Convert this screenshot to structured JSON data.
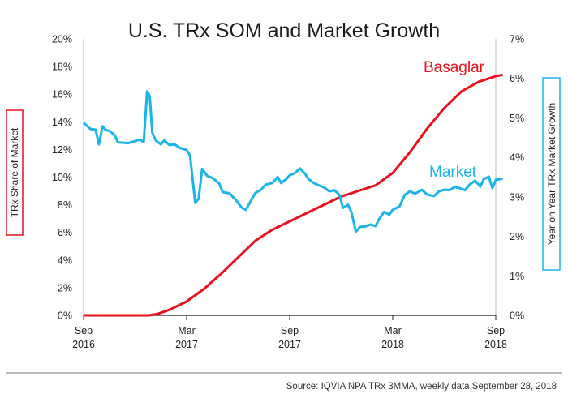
{
  "chart_data": {
    "type": "line",
    "title": "U.S. TRx SOM and Market Growth",
    "ylabel_left": "TRx Share of Market",
    "ylabel_right": "Year on Year TRx Market Growth",
    "source": "Source: IQVIA NPA TRx 3MMA, weekly data September 28, 2018",
    "x_range": [
      0,
      24
    ],
    "x_ticks": [
      {
        "x": 0,
        "line1": "Sep",
        "line2": "2016"
      },
      {
        "x": 6,
        "line1": "Mar",
        "line2": "2017"
      },
      {
        "x": 12,
        "line1": "Sep",
        "line2": "2017"
      },
      {
        "x": 18,
        "line1": "Mar",
        "line2": "2018"
      },
      {
        "x": 24,
        "line1": "Sep",
        "line2": "2018"
      }
    ],
    "y_left": {
      "lim": [
        0,
        20
      ],
      "ticks": [
        "0%",
        "2%",
        "4%",
        "6%",
        "8%",
        "10%",
        "12%",
        "14%",
        "16%",
        "18%",
        "20%"
      ]
    },
    "y_right": {
      "lim": [
        0,
        7
      ],
      "ticks": [
        "0%",
        "1%",
        "2%",
        "3%",
        "4%",
        "5%",
        "6%",
        "7%"
      ]
    },
    "series": [
      {
        "name": "Basaglar",
        "axis": "left",
        "color": "#e8101c",
        "points": [
          [
            0,
            0
          ],
          [
            1,
            0
          ],
          [
            2,
            0
          ],
          [
            3,
            0
          ],
          [
            3.8,
            0
          ],
          [
            4.3,
            0.1
          ],
          [
            5,
            0.4
          ],
          [
            6,
            1.0
          ],
          [
            7,
            1.9
          ],
          [
            8,
            3.0
          ],
          [
            9,
            4.2
          ],
          [
            10,
            5.4
          ],
          [
            11,
            6.2
          ],
          [
            12,
            6.8
          ],
          [
            13,
            7.4
          ],
          [
            14,
            8.0
          ],
          [
            15,
            8.6
          ],
          [
            16,
            9.0
          ],
          [
            17,
            9.4
          ],
          [
            18,
            10.3
          ],
          [
            19,
            11.8
          ],
          [
            20,
            13.5
          ],
          [
            21,
            15.0
          ],
          [
            22,
            16.2
          ],
          [
            23,
            16.9
          ],
          [
            24,
            17.3
          ],
          [
            24.4,
            17.4
          ]
        ]
      },
      {
        "name": "Market",
        "axis": "right",
        "color": "#1ab4e8",
        "points": [
          [
            0,
            4.88
          ],
          [
            0.4,
            4.72
          ],
          [
            0.7,
            4.7
          ],
          [
            0.9,
            4.33
          ],
          [
            1.1,
            4.79
          ],
          [
            1.3,
            4.69
          ],
          [
            1.5,
            4.67
          ],
          [
            1.8,
            4.57
          ],
          [
            2.0,
            4.38
          ],
          [
            2.6,
            4.36
          ],
          [
            2.9,
            4.4
          ],
          [
            3.3,
            4.45
          ],
          [
            3.5,
            4.38
          ],
          [
            3.7,
            5.67
          ],
          [
            3.85,
            5.55
          ],
          [
            4.0,
            4.62
          ],
          [
            4.2,
            4.43
          ],
          [
            4.5,
            4.33
          ],
          [
            4.7,
            4.43
          ],
          [
            5.0,
            4.31
          ],
          [
            5.3,
            4.33
          ],
          [
            5.6,
            4.24
          ],
          [
            6.0,
            4.19
          ],
          [
            6.2,
            4.05
          ],
          [
            6.5,
            2.85
          ],
          [
            6.7,
            2.95
          ],
          [
            6.9,
            3.71
          ],
          [
            7.2,
            3.53
          ],
          [
            7.5,
            3.48
          ],
          [
            7.9,
            3.34
          ],
          [
            8.1,
            3.12
          ],
          [
            8.5,
            3.09
          ],
          [
            8.9,
            2.9
          ],
          [
            9.2,
            2.73
          ],
          [
            9.45,
            2.67
          ],
          [
            9.7,
            2.87
          ],
          [
            10.0,
            3.1
          ],
          [
            10.3,
            3.17
          ],
          [
            10.6,
            3.31
          ],
          [
            11.0,
            3.35
          ],
          [
            11.3,
            3.5
          ],
          [
            11.5,
            3.35
          ],
          [
            11.8,
            3.45
          ],
          [
            12.0,
            3.55
          ],
          [
            12.3,
            3.6
          ],
          [
            12.6,
            3.72
          ],
          [
            12.9,
            3.58
          ],
          [
            13.1,
            3.45
          ],
          [
            13.4,
            3.35
          ],
          [
            13.7,
            3.29
          ],
          [
            14.0,
            3.24
          ],
          [
            14.3,
            3.14
          ],
          [
            14.6,
            3.17
          ],
          [
            14.9,
            3.05
          ],
          [
            15.1,
            2.72
          ],
          [
            15.4,
            2.8
          ],
          [
            15.6,
            2.6
          ],
          [
            15.85,
            2.12
          ],
          [
            16.1,
            2.24
          ],
          [
            16.4,
            2.25
          ],
          [
            16.7,
            2.3
          ],
          [
            17.0,
            2.26
          ],
          [
            17.2,
            2.43
          ],
          [
            17.5,
            2.62
          ],
          [
            17.8,
            2.55
          ],
          [
            18.0,
            2.67
          ],
          [
            18.4,
            2.76
          ],
          [
            18.7,
            3.05
          ],
          [
            19.0,
            3.14
          ],
          [
            19.3,
            3.08
          ],
          [
            19.7,
            3.18
          ],
          [
            20.0,
            3.06
          ],
          [
            20.4,
            3.02
          ],
          [
            20.7,
            3.14
          ],
          [
            21.0,
            3.18
          ],
          [
            21.3,
            3.17
          ],
          [
            21.6,
            3.25
          ],
          [
            21.9,
            3.22
          ],
          [
            22.2,
            3.17
          ],
          [
            22.5,
            3.32
          ],
          [
            22.8,
            3.41
          ],
          [
            23.1,
            3.26
          ],
          [
            23.3,
            3.45
          ],
          [
            23.6,
            3.51
          ],
          [
            23.8,
            3.22
          ],
          [
            24.0,
            3.43
          ],
          [
            24.4,
            3.46
          ]
        ]
      }
    ],
    "grid": false,
    "legend": "inline labels"
  }
}
